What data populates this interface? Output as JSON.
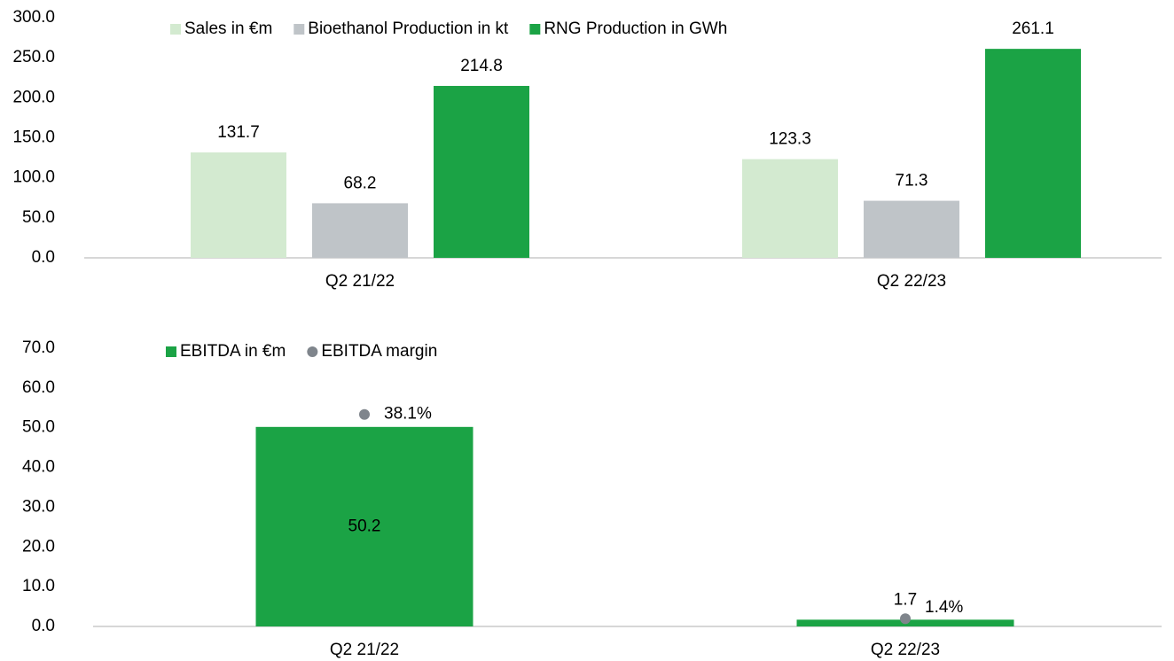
{
  "chart_data": [
    {
      "type": "bar",
      "categories": [
        "Q2 21/22",
        "Q2 22/23"
      ],
      "series": [
        {
          "name": "Sales in €m",
          "color": "#d3ead0",
          "values": [
            131.7,
            123.3
          ]
        },
        {
          "name": "Bioethanol Production in kt",
          "color": "#bfc4c8",
          "values": [
            68.2,
            71.3
          ]
        },
        {
          "name": "RNG Production in GWh",
          "color": "#1ba345",
          "values": [
            214.8,
            261.1
          ]
        }
      ],
      "ylim": [
        0,
        300
      ],
      "yticks": [
        {
          "value": 0,
          "label": "0.0"
        },
        {
          "value": 50,
          "label": "50.0"
        },
        {
          "value": 100,
          "label": "100.0"
        },
        {
          "value": 150,
          "label": "150.0"
        },
        {
          "value": 200,
          "label": "200.0"
        },
        {
          "value": 250,
          "label": "250.0"
        },
        {
          "value": 300,
          "label": "300.0"
        }
      ],
      "legend": "top"
    },
    {
      "type": "bar",
      "categories": [
        "Q2 21/22",
        "Q2 22/23"
      ],
      "series": [
        {
          "name": "EBITDA in €m",
          "color": "#1ba345",
          "values": [
            50.2,
            1.7
          ]
        },
        {
          "name": "EBITDA margin",
          "color": "#7f858c",
          "type": "scatter",
          "axis": "y2",
          "values": [
            38.1,
            1.4
          ],
          "value_labels": [
            "38.1%",
            "1.4%"
          ]
        }
      ],
      "ylim": [
        0,
        70
      ],
      "yticks": [
        {
          "value": 0,
          "label": "0.0"
        },
        {
          "value": 10,
          "label": "10.0"
        },
        {
          "value": 20,
          "label": "20.0"
        },
        {
          "value": 30,
          "label": "30.0"
        },
        {
          "value": 40,
          "label": "40.0"
        },
        {
          "value": 50,
          "label": "50.0"
        },
        {
          "value": 60,
          "label": "60.0"
        },
        {
          "value": 70,
          "label": "70.0"
        }
      ],
      "y2lim": [
        0,
        50
      ],
      "legend": "top"
    }
  ]
}
